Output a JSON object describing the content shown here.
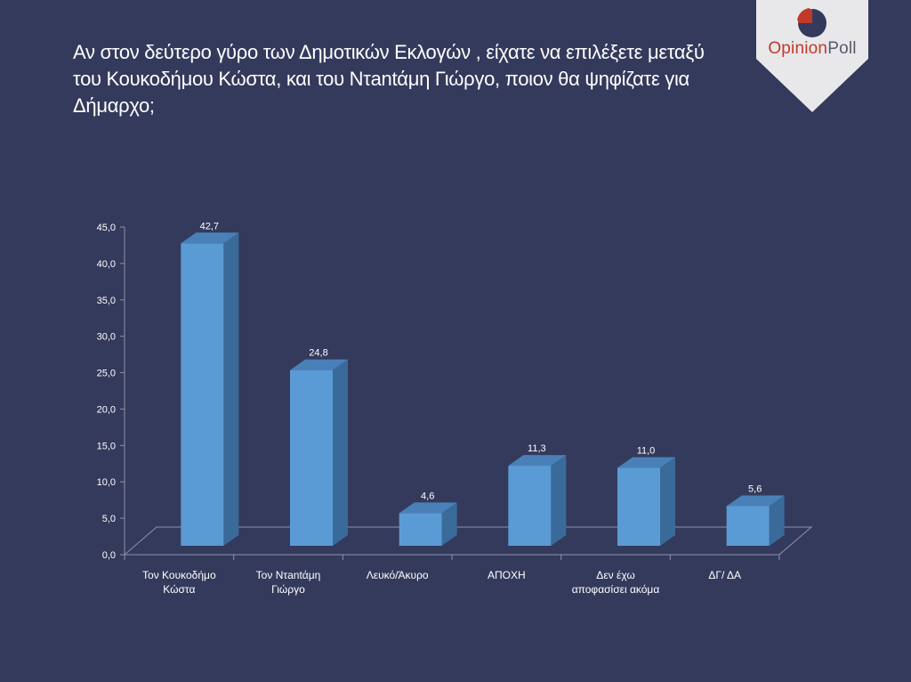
{
  "slide": {
    "title": "Αν στον δεύτερο γύρο των Δημοτικών Εκλογών , είχατε να επιλέξετε μεταξύ\nτου Κουκοδήμου Κώστα, και του Ντantάμη Γιώργο, ποιον θα ψηφίζατε για\nΔήμαρχο;"
  },
  "logo": {
    "part1": "Opinion",
    "part2": "Poll",
    "brand_color": "#c0392b"
  },
  "chart_data": {
    "type": "bar",
    "categories": [
      [
        "Τον Κουκοδήμο",
        "Κώστα"
      ],
      [
        "Τον Ντantάμη",
        "Γιώργο"
      ],
      [
        "Λευκό/Άκυρο"
      ],
      [
        "ΑΠΟΧΗ"
      ],
      [
        "Δεν έχω",
        "αποφασίσει ακόμα"
      ],
      [
        "ΔΓ/ ΔΑ"
      ]
    ],
    "values": [
      42.7,
      24.8,
      4.6,
      11.3,
      11.0,
      5.6
    ],
    "value_labels": [
      "42,7",
      "24,8",
      "4,6",
      "11,3",
      "11,0",
      "5,6"
    ],
    "ylim": [
      0,
      45
    ],
    "yticks": [
      "0,0",
      "5,0",
      "10,0",
      "15,0",
      "20,0",
      "25,0",
      "30,0",
      "35,0",
      "40,0",
      "45,0"
    ],
    "bar_front_color": "#5b9bd5",
    "bar_side_color": "#3a6a9a",
    "bar_top_color": "#4a80b8",
    "grid": false
  }
}
